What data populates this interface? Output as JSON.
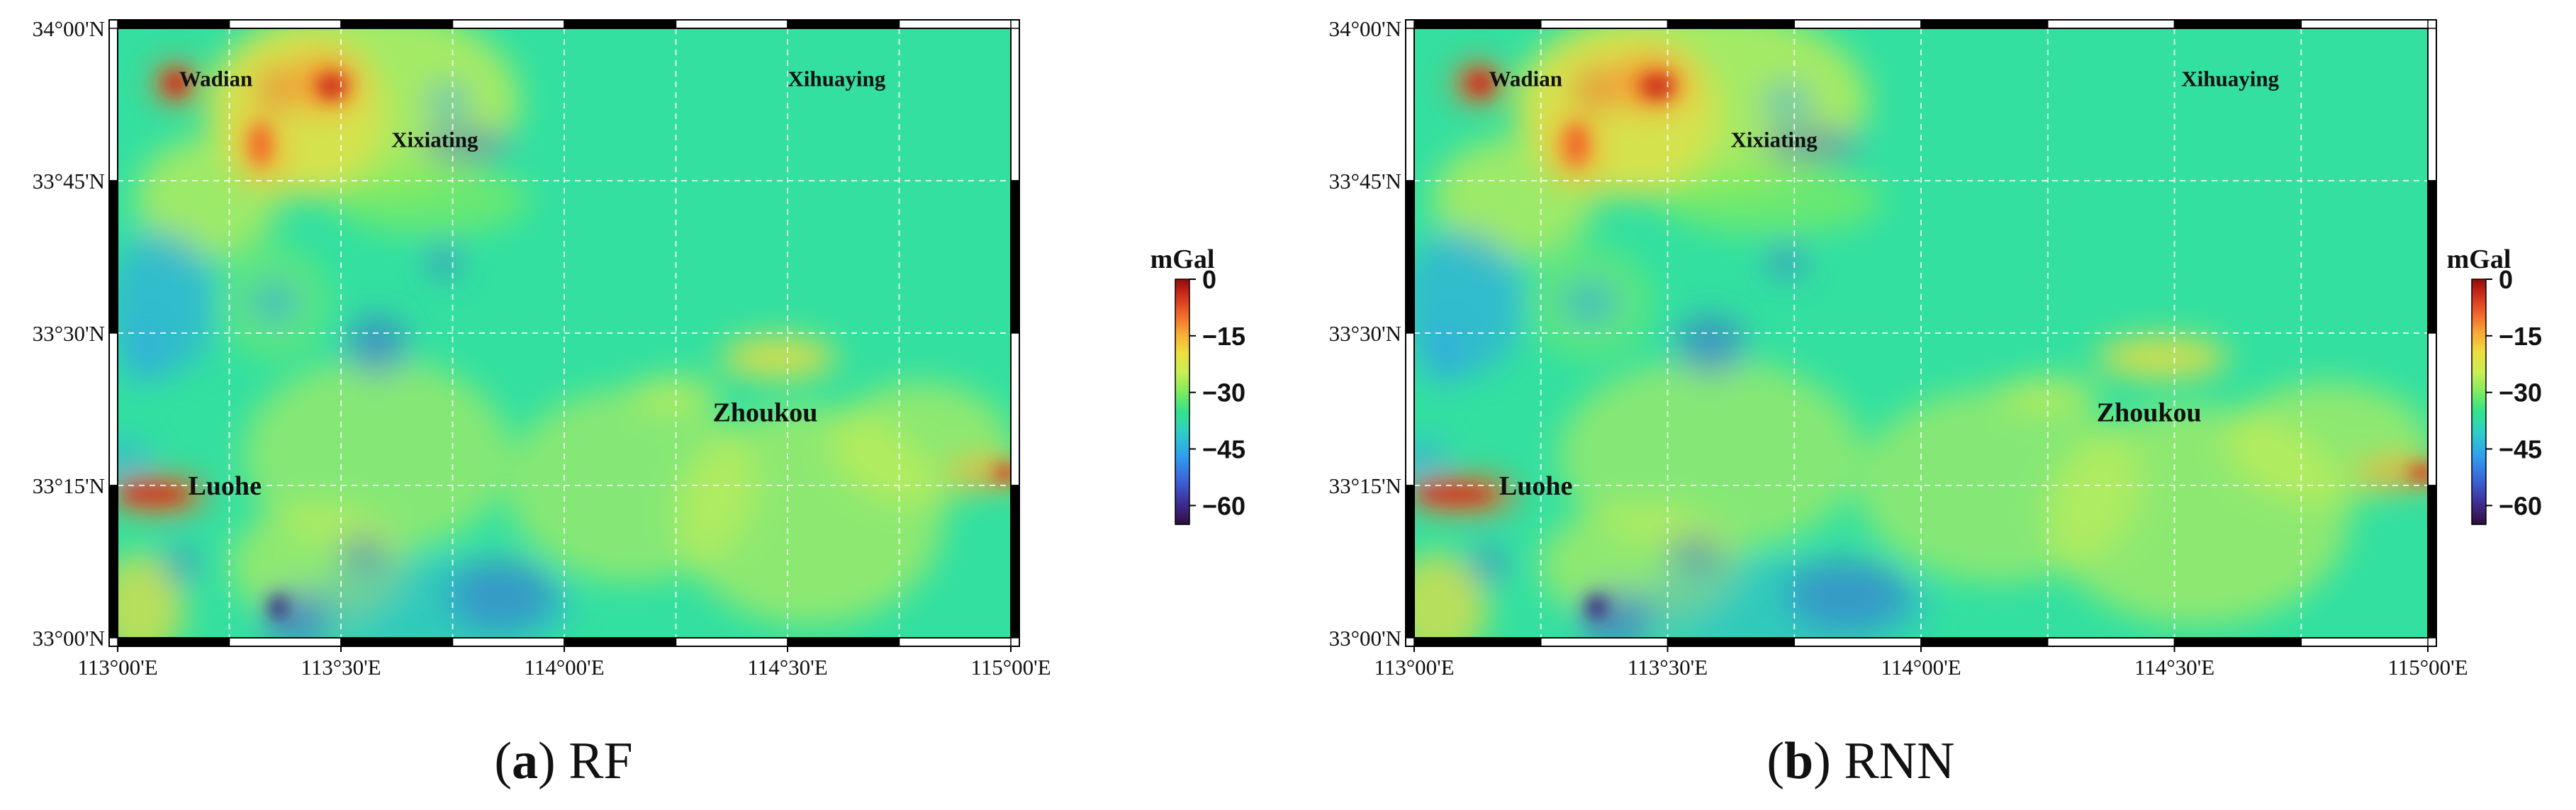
{
  "panels": [
    {
      "id": "rf",
      "caption_letter": "a",
      "caption_method": "RF",
      "variant": 0
    },
    {
      "id": "rnn",
      "caption_letter": "b",
      "caption_method": "RNN",
      "variant": 1
    }
  ],
  "map": {
    "lon_range": [
      "113°00'E",
      "115°00'E"
    ],
    "lat_range": [
      "33°00'N",
      "34°00'N"
    ],
    "lon_ticks": [
      "113°00'E",
      "113°30'E",
      "114°00'E",
      "114°30'E",
      "115°00'E"
    ],
    "lat_ticks": [
      "34°00'N",
      "33°45'N",
      "33°30'N",
      "33°15'N",
      "33°00'N"
    ],
    "lon_tick_values": [
      113.0,
      113.5,
      114.0,
      114.5,
      115.0
    ],
    "lat_tick_values": [
      34.0,
      33.75,
      33.5,
      33.25,
      33.0
    ],
    "grid": true,
    "cities": [
      {
        "name": "Wadian",
        "lon": 113.22,
        "lat": 33.905,
        "size": "small"
      },
      {
        "name": "Xixiating",
        "lon": 113.71,
        "lat": 33.805,
        "size": "small"
      },
      {
        "name": "Xihuaying",
        "lon": 114.61,
        "lat": 33.905,
        "size": "small"
      },
      {
        "name": "Zhoukou",
        "lon": 114.45,
        "lat": 33.355,
        "size": "large"
      },
      {
        "name": "Luohe",
        "lon": 113.24,
        "lat": 33.235,
        "size": "large"
      }
    ]
  },
  "colorbar": {
    "unit": "mGal",
    "min": -65,
    "max": 0,
    "tick_values": [
      0,
      -15,
      -30,
      -45,
      -60
    ],
    "tick_labels": [
      "0",
      "−15",
      "−30",
      "−45",
      "−60"
    ],
    "colors": [
      "#2d0f3c",
      "#3f2a8f",
      "#3b63d8",
      "#2fa0ef",
      "#2ed0c4",
      "#33e28a",
      "#7deb5f",
      "#c9ee52",
      "#eede40",
      "#f9a934",
      "#f0642a",
      "#cc2a1a",
      "#8e0d0d"
    ]
  }
}
